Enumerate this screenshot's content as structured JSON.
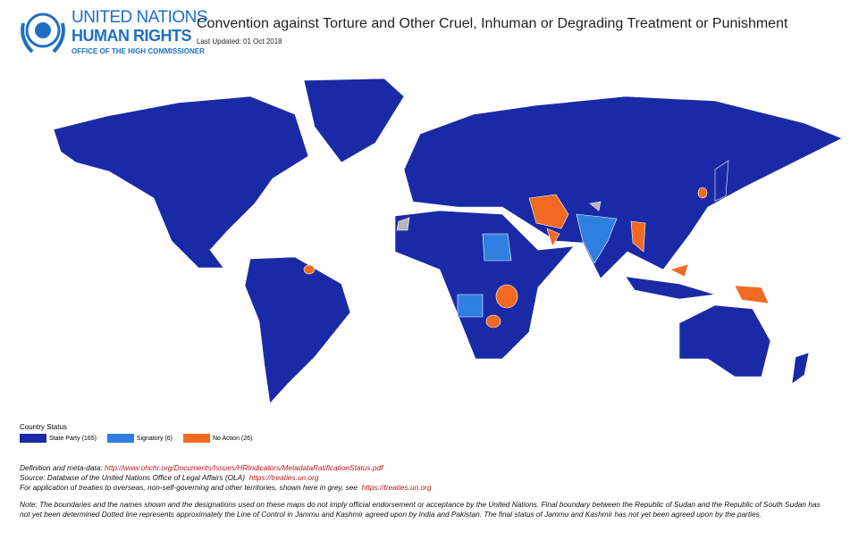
{
  "header": {
    "org_line1": "UNITED NATIONS",
    "org_line2": "HUMAN RIGHTS",
    "org_line3": "OFFICE OF THE HIGH COMMISSIONER",
    "title": "Convention against Torture and Other Cruel, Inhuman or Degrading Treatment or Punishment",
    "updated": "Last Updated: 01 Oct 2018"
  },
  "legend": {
    "title": "Country Status",
    "items": [
      {
        "label": "State Party (165)",
        "color": "#1a2aa6"
      },
      {
        "label": "Signatory (6)",
        "color": "#2f7fe0"
      },
      {
        "label": "No Action (26)",
        "color": "#f26a21"
      }
    ],
    "territory_color": "#b5b5b5"
  },
  "footer": {
    "definition_label": "Definition and meta-data:",
    "definition_link": "http://www.ohchr.org/Documents/Issues/HRIndicators/MetadataRatificationStatus.pdf",
    "source_label": "Source: Database of the United Nations Office of Legal Affairs (OLA)",
    "source_link": "https://treaties.un.org",
    "territories_label": "For application of treaties to overseas, non-self-governing and other territories, shown here in grey, see",
    "territories_link": "https://treaties.un.org",
    "note": "Note: The boundaries and the names shown and the designations used on these maps do not imply official endorsement or acceptance by the United Nations. Final boundary between the Republic of Sudan and the Republic of South Sudan has not yet been determined Dotted line represents approximately the Line of Control in Jammu and Kashmir agreed upon by India and Pakistan. The final status of Jammu and Kashmir has not yet been agreed upon by the parties."
  }
}
